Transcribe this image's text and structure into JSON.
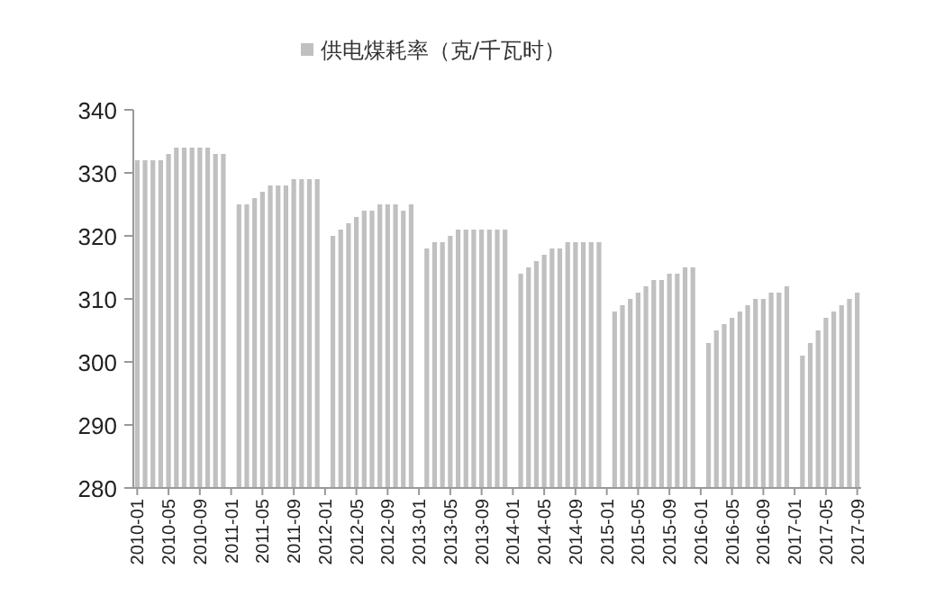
{
  "chart_data": {
    "type": "bar",
    "legend": "top",
    "categories": [
      "2010-01",
      null,
      null,
      null,
      "2010-05",
      null,
      null,
      null,
      "2010-09",
      null,
      null,
      null,
      "2011-01",
      null,
      null,
      null,
      "2011-05",
      null,
      null,
      null,
      "2011-09",
      null,
      null,
      null,
      "2012-01",
      null,
      null,
      null,
      "2012-05",
      null,
      null,
      null,
      "2012-09",
      null,
      null,
      null,
      "2013-01",
      null,
      null,
      null,
      "2013-05",
      null,
      null,
      null,
      "2013-09",
      null,
      null,
      null,
      "2014-01",
      null,
      null,
      null,
      "2014-05",
      null,
      null,
      null,
      "2014-09",
      null,
      null,
      null,
      "2015-01",
      null,
      null,
      null,
      "2015-05",
      null,
      null,
      null,
      "2015-09",
      null,
      null,
      null,
      "2016-01",
      null,
      null,
      null,
      "2016-05",
      null,
      null,
      null,
      "2016-09",
      null,
      null,
      null,
      "2017-01",
      null,
      null,
      null,
      "2017-05",
      null,
      null,
      null,
      "2017-09"
    ],
    "series": [
      {
        "name": "供电煤耗率（克/千瓦时）",
        "color": "#c0c0c0",
        "values": [
          332,
          332,
          332,
          332,
          333,
          334,
          334,
          334,
          334,
          334,
          333,
          333,
          null,
          325,
          325,
          326,
          327,
          328,
          328,
          328,
          329,
          329,
          329,
          329,
          null,
          320,
          321,
          322,
          323,
          324,
          324,
          325,
          325,
          325,
          324,
          325,
          null,
          318,
          319,
          319,
          320,
          321,
          321,
          321,
          321,
          321,
          321,
          321,
          null,
          314,
          315,
          316,
          317,
          318,
          318,
          319,
          319,
          319,
          319,
          319,
          null,
          308,
          309,
          310,
          311,
          312,
          313,
          313,
          314,
          314,
          315,
          315,
          null,
          303,
          305,
          306,
          307,
          308,
          309,
          310,
          310,
          311,
          311,
          312,
          null,
          301,
          303,
          305,
          307,
          308,
          309,
          310,
          311
        ]
      }
    ],
    "ylim": [
      280,
      340
    ],
    "yticks": [
      280,
      290,
      300,
      310,
      320,
      330,
      340
    ],
    "grid": false
  }
}
